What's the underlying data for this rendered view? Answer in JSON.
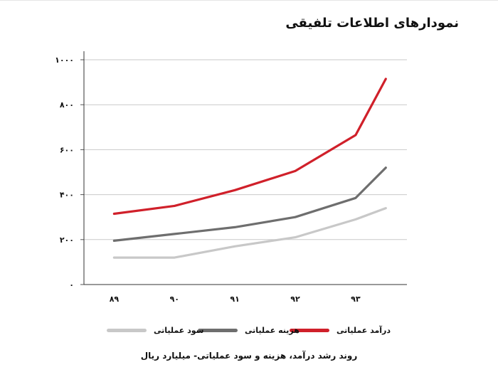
{
  "chart_data": {
    "type": "line",
    "title": "نمودارهای اطلاعات تلفیقی",
    "caption": "روند رشد درآمد، هزینه و سود عملیاتی- میلیارد ریال",
    "categories": [
      "۸۹",
      "۹۰",
      "۹۱",
      "۹۲",
      "۹۳",
      ""
    ],
    "x": [
      1,
      2,
      3,
      4,
      5,
      5.5
    ],
    "x_tick_labels": [
      "۸۹",
      "۹۰",
      "۹۱",
      "۹۲",
      "۹۳"
    ],
    "y_ticks": [
      0,
      200,
      400,
      600,
      800,
      1000
    ],
    "y_tick_labels": [
      "۰",
      "۲۰۰",
      "۴۰۰",
      "۶۰۰",
      "۸۰۰",
      "۱۰۰۰"
    ],
    "ylim": [
      0,
      1000
    ],
    "grid": true,
    "legend_position": "bottom",
    "series": [
      {
        "name": "درآمد عملیاتی",
        "color": "#d0202a",
        "values": [
          315,
          350,
          420,
          505,
          665,
          915
        ]
      },
      {
        "name": "هزینه عملیاتی",
        "color": "#6e6e6e",
        "values": [
          195,
          225,
          255,
          300,
          385,
          520
        ]
      },
      {
        "name": "سود عملیاتی",
        "color": "#c8c8c8",
        "values": [
          120,
          120,
          170,
          210,
          290,
          340
        ]
      }
    ]
  }
}
